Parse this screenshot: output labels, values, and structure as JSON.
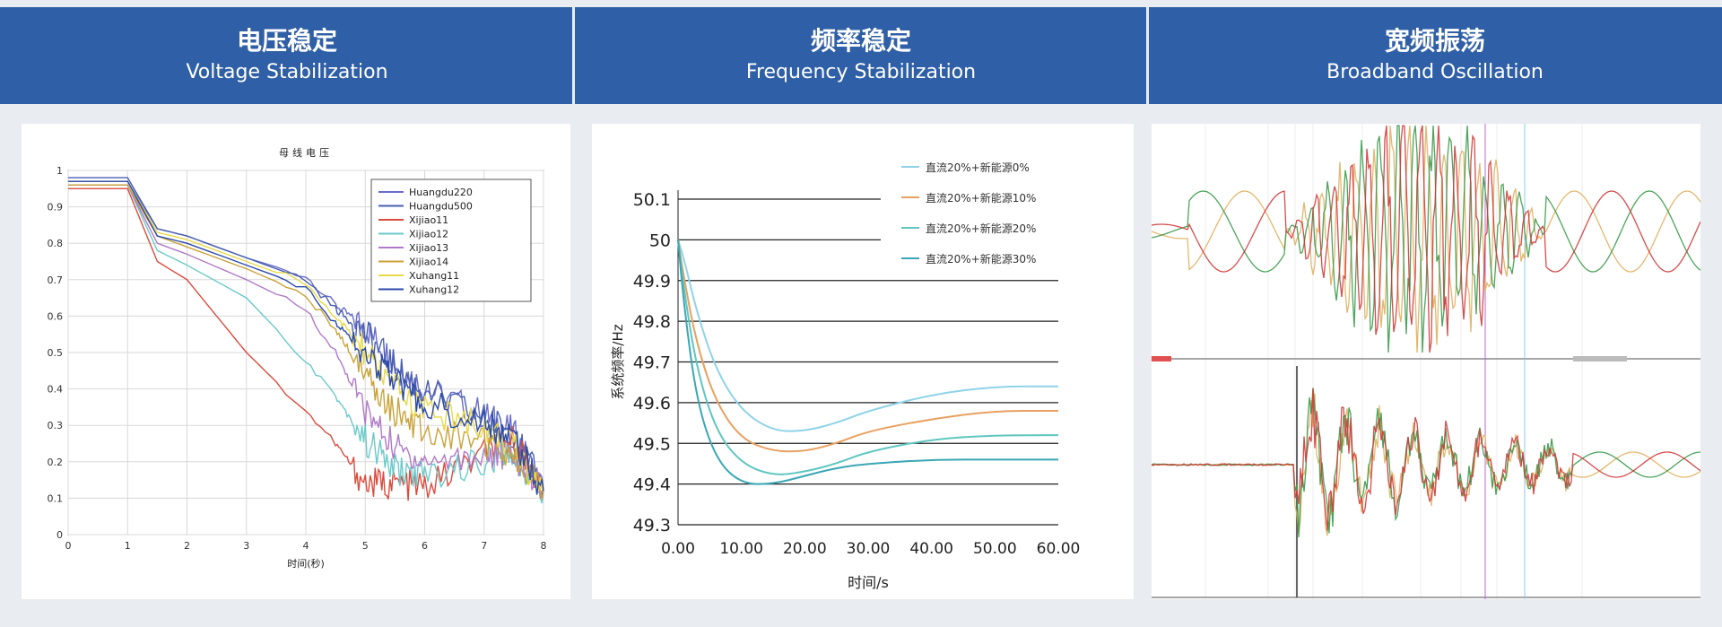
{
  "header": {
    "columns": [
      {
        "cn": "电压稳定",
        "en": "Voltage Stabilization"
      },
      {
        "cn": "频率稳定",
        "en": "Frequency Stabilization"
      },
      {
        "cn": "宽频振荡",
        "en": "Broadband Oscillation"
      }
    ]
  },
  "colors": {
    "banner": "#2f5fa6",
    "chart2_series": [
      "#8fd3e8",
      "#e8a060",
      "#5fc6c0",
      "#3aa7b4"
    ],
    "chart1_series": [
      "#6a6ec8",
      "#4a5fb0",
      "#d94c3e",
      "#6cc9c9",
      "#b079c8",
      "#c9a23a",
      "#e8d94a",
      "#2c4aa8"
    ]
  },
  "chart_data": [
    {
      "type": "line",
      "title": "母线电压",
      "xlabel": "时间(秒)",
      "ylabel": "",
      "xlim": [
        0,
        8
      ],
      "ylim": [
        0,
        1
      ],
      "x_ticks": [
        "0",
        "1",
        "2",
        "3",
        "4",
        "5",
        "6",
        "7",
        "8"
      ],
      "y_ticks": [
        "0",
        "0.1",
        "0.2",
        "0.3",
        "0.4",
        "0.5",
        "0.6",
        "0.7",
        "0.8",
        "0.9",
        "1"
      ],
      "grid": true,
      "legend": "top-right",
      "series": [
        {
          "name": "Huangdu220",
          "x": [
            0,
            1,
            1.5,
            2,
            3,
            4,
            4.5,
            5,
            5.5,
            6,
            7,
            7.5,
            8
          ],
          "y": [
            0.97,
            0.97,
            0.84,
            0.82,
            0.76,
            0.71,
            0.63,
            0.57,
            0.47,
            0.4,
            0.33,
            0.28,
            0.12
          ]
        },
        {
          "name": "Huangdu500",
          "x": [
            0,
            1,
            1.5,
            2,
            3,
            4,
            4.5,
            5,
            5.5,
            6,
            7,
            7.5,
            8
          ],
          "y": [
            0.98,
            0.98,
            0.84,
            0.82,
            0.76,
            0.7,
            0.62,
            0.55,
            0.46,
            0.39,
            0.32,
            0.28,
            0.12
          ]
        },
        {
          "name": "Xijiao11",
          "x": [
            0,
            1,
            1.5,
            2,
            3,
            4,
            4.5,
            5,
            5.5,
            6,
            7,
            7.5,
            8
          ],
          "y": [
            0.95,
            0.95,
            0.75,
            0.7,
            0.5,
            0.34,
            0.25,
            0.14,
            0.14,
            0.13,
            0.22,
            0.26,
            0.12
          ]
        },
        {
          "name": "Xijiao12",
          "x": [
            0,
            1,
            1.5,
            2,
            3,
            4,
            4.5,
            5,
            5.5,
            6,
            7,
            7.5,
            8
          ],
          "y": [
            0.96,
            0.96,
            0.78,
            0.74,
            0.65,
            0.48,
            0.38,
            0.26,
            0.18,
            0.16,
            0.2,
            0.22,
            0.12
          ]
        },
        {
          "name": "Xijiao13",
          "x": [
            0,
            1,
            1.5,
            2,
            3,
            4,
            4.5,
            5,
            5.5,
            6,
            7,
            7.5,
            8
          ],
          "y": [
            0.96,
            0.96,
            0.8,
            0.77,
            0.7,
            0.62,
            0.5,
            0.34,
            0.24,
            0.2,
            0.22,
            0.22,
            0.12
          ]
        },
        {
          "name": "Xijiao14",
          "x": [
            0,
            1,
            1.5,
            2,
            3,
            4,
            4.5,
            5,
            5.5,
            6,
            7,
            7.5,
            8
          ],
          "y": [
            0.96,
            0.96,
            0.82,
            0.79,
            0.73,
            0.66,
            0.56,
            0.44,
            0.34,
            0.28,
            0.26,
            0.22,
            0.12
          ]
        },
        {
          "name": "Xuhang11",
          "x": [
            0,
            1,
            1.5,
            2,
            3,
            4,
            4.5,
            5,
            5.5,
            6,
            7,
            7.5,
            8
          ],
          "y": [
            0.97,
            0.97,
            0.83,
            0.81,
            0.75,
            0.69,
            0.6,
            0.5,
            0.4,
            0.34,
            0.3,
            0.24,
            0.12
          ]
        },
        {
          "name": "Xuhang12",
          "x": [
            0,
            1,
            1.5,
            2,
            3,
            4,
            4.5,
            5,
            5.5,
            6,
            7,
            7.5,
            8
          ],
          "y": [
            0.97,
            0.97,
            0.82,
            0.8,
            0.74,
            0.68,
            0.58,
            0.5,
            0.42,
            0.36,
            0.31,
            0.26,
            0.12
          ]
        }
      ]
    },
    {
      "type": "line",
      "title": "",
      "xlabel": "时间/s",
      "ylabel": "系统频率/Hz",
      "xlim": [
        0,
        60
      ],
      "ylim": [
        49.3,
        50.1
      ],
      "x_ticks": [
        "0.00",
        "10.00",
        "20.00",
        "30.00",
        "40.00",
        "50.00",
        "60.00"
      ],
      "y_ticks": [
        "49.3",
        "49.4",
        "49.5",
        "49.6",
        "49.7",
        "49.8",
        "49.9",
        "50",
        "50.1"
      ],
      "grid": true,
      "legend": "top-right",
      "series": [
        {
          "name": "直流20%+新能源0%",
          "x": [
            0,
            1,
            3,
            6,
            10,
            15,
            20,
            25,
            30,
            40,
            50,
            60
          ],
          "y": [
            50.0,
            49.95,
            49.82,
            49.68,
            49.58,
            49.53,
            49.53,
            49.55,
            49.58,
            49.62,
            49.64,
            49.64
          ]
        },
        {
          "name": "直流20%+新能源10%",
          "x": [
            0,
            1,
            3,
            6,
            10,
            15,
            20,
            25,
            30,
            40,
            50,
            60
          ],
          "y": [
            50.0,
            49.9,
            49.74,
            49.6,
            49.51,
            49.48,
            49.48,
            49.5,
            49.53,
            49.56,
            49.58,
            49.58
          ]
        },
        {
          "name": "直流20%+新能源20%",
          "x": [
            0,
            1,
            3,
            6,
            10,
            15,
            20,
            25,
            30,
            40,
            50,
            60
          ],
          "y": [
            50.0,
            49.87,
            49.68,
            49.53,
            49.45,
            49.42,
            49.43,
            49.45,
            49.48,
            49.51,
            49.52,
            49.52
          ]
        },
        {
          "name": "直流20%+新能源30%",
          "x": [
            0,
            1,
            3,
            6,
            10,
            15,
            20,
            25,
            30,
            40,
            50,
            60
          ],
          "y": [
            50.0,
            49.83,
            49.6,
            49.46,
            49.4,
            49.4,
            49.42,
            49.44,
            49.45,
            49.46,
            49.46,
            49.46
          ]
        }
      ]
    },
    {
      "type": "line",
      "title": "",
      "xlabel": "",
      "ylabel": "",
      "grid": true,
      "series": []
    }
  ]
}
